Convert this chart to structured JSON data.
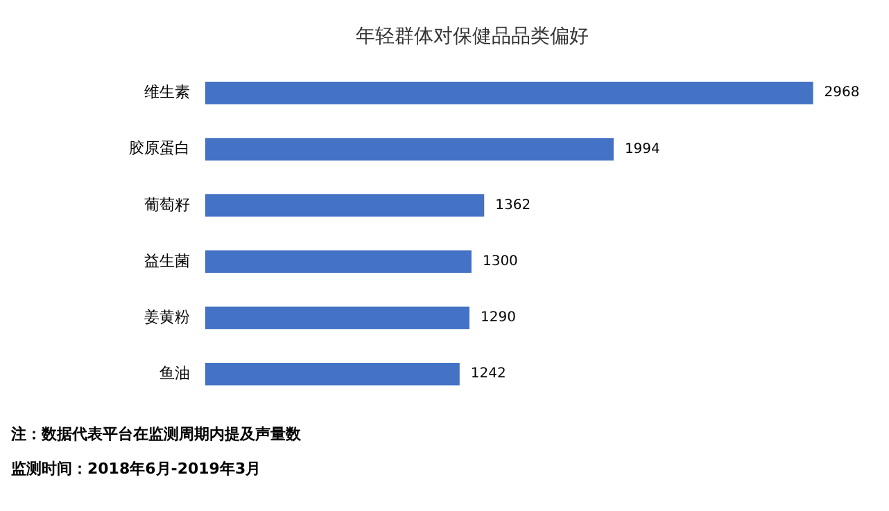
{
  "chart_data": {
    "type": "bar",
    "orientation": "horizontal",
    "title": "年轻群体对保健品品类偏好",
    "categories": [
      "维生素",
      "胶原蛋白",
      "葡萄籽",
      "益生菌",
      "姜黄粉",
      "鱼油"
    ],
    "values": [
      2968,
      1994,
      1362,
      1300,
      1290,
      1242
    ],
    "color": "#4472c4",
    "data_labels": true,
    "legend": false,
    "annotations": [
      "注：数据代表平台在监测周期内提及声量数",
      "监测时间：2018年6月-2019年3月"
    ]
  }
}
